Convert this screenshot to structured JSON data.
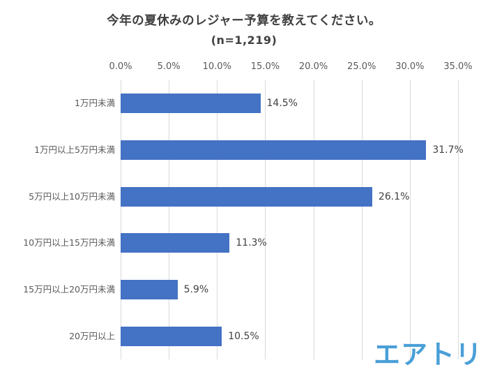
{
  "chart": {
    "title": "今年の夏休みのレジャー予算を教えてください。",
    "subtitle": "(n=1,219)"
  },
  "chart_data": {
    "type": "bar",
    "orientation": "horizontal",
    "title": "今年の夏休みのレジャー予算を教えてください。",
    "subtitle": "(n=1,219)",
    "categories": [
      "1万円未満",
      "1万円以上5万円未満",
      "5万円以上10万円未満",
      "10万円以上15万円未満",
      "15万円以上20万円未満",
      "20万円以上"
    ],
    "values": [
      14.5,
      31.7,
      26.1,
      11.3,
      5.9,
      10.5
    ],
    "value_labels": [
      "14.5%",
      "31.7%",
      "26.1%",
      "11.3%",
      "5.9%",
      "10.5%"
    ],
    "x_ticks": [
      "0.0%",
      "5.0%",
      "10.0%",
      "15.0%",
      "20.0%",
      "25.0%",
      "30.0%",
      "35.0%"
    ],
    "x_tick_values": [
      0,
      5,
      10,
      15,
      20,
      25,
      30,
      35
    ],
    "xlim": [
      0,
      35
    ],
    "grid": true,
    "legend": "none",
    "bar_color": "#4472c4",
    "gridline_color": "#d9d9d9"
  },
  "branding": {
    "logo_text": "エアトリ",
    "logo_color": "#4a9fd8"
  }
}
